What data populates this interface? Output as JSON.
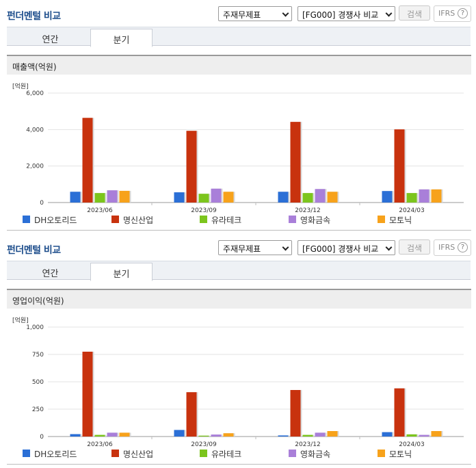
{
  "panels": [
    {
      "title": "펀더멘털 비교",
      "statement_select": "주재무제표",
      "compare_select": "[FG000] 경쟁사 비교",
      "search_label": "검색",
      "ifrs_label": "IFRS",
      "help_icon": "question-circle-icon",
      "tabs": [
        {
          "label": "연간"
        },
        {
          "label": "분기",
          "active": true
        }
      ],
      "section_title": "매출액(억원)",
      "unit": "[억원]",
      "legend": [
        "DH오토리드",
        "명신산업",
        "유라테크",
        "영화금속",
        "모토닉"
      ],
      "chart_data": {
        "type": "bar",
        "title": "매출액(억원)",
        "ylabel": "[억원]",
        "xlabel": "",
        "categories": [
          "2023/06",
          "2023/09",
          "2023/12",
          "2024/03"
        ],
        "ylim": [
          0,
          6000
        ],
        "yticks": [
          "0",
          "2,000",
          "4,000",
          "6,000"
        ],
        "ytick_values": [
          0,
          2000,
          4000,
          6000
        ],
        "series": [
          {
            "name": "DH오토리드",
            "color": "#2b6fd6",
            "values": [
              590,
              560,
              590,
              630
            ]
          },
          {
            "name": "명신산업",
            "color": "#c8320e",
            "values": [
              4640,
              3930,
              4420,
              4010
            ]
          },
          {
            "name": "유라테크",
            "color": "#7cc51d",
            "values": [
              520,
              480,
              520,
              520
            ]
          },
          {
            "name": "영화금속",
            "color": "#a97fd9",
            "values": [
              670,
              760,
              740,
              720
            ]
          },
          {
            "name": "모토닉",
            "color": "#f7a21b",
            "values": [
              640,
              590,
              590,
              720
            ]
          }
        ]
      }
    },
    {
      "title": "펀더멘털 비교",
      "statement_select": "주재무제표",
      "compare_select": "[FG000] 경쟁사 비교",
      "search_label": "검색",
      "ifrs_label": "IFRS",
      "help_icon": "question-circle-icon",
      "tabs": [
        {
          "label": "연간"
        },
        {
          "label": "분기",
          "active": true
        }
      ],
      "section_title": "영업이익(억원)",
      "unit": "[억원]",
      "legend": [
        "DH오토리드",
        "명신산업",
        "유라테크",
        "영화금속",
        "모토닉"
      ],
      "chart_data": {
        "type": "bar",
        "title": "영업이익(억원)",
        "ylabel": "[억원]",
        "xlabel": "",
        "categories": [
          "2023/06",
          "2023/09",
          "2023/12",
          "2024/03"
        ],
        "ylim": [
          0,
          1000
        ],
        "yticks": [
          "0",
          "250",
          "500",
          "750",
          "1,000"
        ],
        "ytick_values": [
          0,
          250,
          500,
          750,
          1000
        ],
        "series": [
          {
            "name": "DH오토리드",
            "color": "#2b6fd6",
            "values": [
              22,
              60,
              10,
              40
            ]
          },
          {
            "name": "명신산업",
            "color": "#c8320e",
            "values": [
              775,
              405,
              425,
              440
            ]
          },
          {
            "name": "유라테크",
            "color": "#7cc51d",
            "values": [
              15,
              8,
              15,
              20
            ]
          },
          {
            "name": "영화금속",
            "color": "#a97fd9",
            "values": [
              35,
              18,
              35,
              15
            ]
          },
          {
            "name": "모토닉",
            "color": "#f7a21b",
            "values": [
              35,
              30,
              50,
              50
            ]
          }
        ]
      }
    }
  ]
}
